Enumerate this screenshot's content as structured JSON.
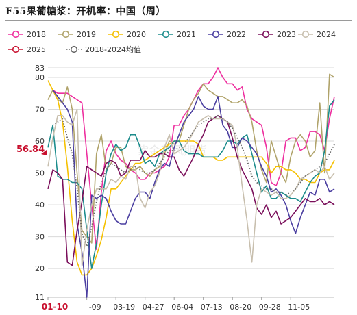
{
  "title": "F55果葡糖浆：开机率：中国（周）",
  "chart_data": {
    "type": "line",
    "ylim": [
      11,
      83
    ],
    "y_ticks": [
      "11",
      "20",
      "30",
      "40",
      "50",
      "60",
      "70",
      "80",
      "83"
    ],
    "x_tick_labels": [
      "01-10",
      "-09",
      "03-19",
      "04-27",
      "06-04",
      "07-13",
      "08-20",
      "09-28",
      "11-05"
    ],
    "current_value_label": "56.84",
    "legend_position": "top",
    "grid": "horizontal",
    "series": [
      {
        "name": "2018",
        "color": "#ee2f9f",
        "dash": "solid",
        "marker": "circle",
        "values": [
          null,
          76,
          75,
          75,
          75,
          74,
          73,
          72,
          56,
          40,
          26,
          44,
          57,
          60,
          56,
          54,
          53,
          51,
          50,
          48,
          48,
          50,
          50,
          51,
          52,
          55,
          65,
          65,
          68,
          70,
          73,
          76,
          78,
          78,
          80,
          83,
          80,
          78,
          78,
          76,
          77,
          70,
          67,
          66,
          65,
          58,
          47,
          46,
          50,
          60,
          61,
          61,
          57,
          58,
          63,
          63,
          62,
          57,
          67,
          74
        ]
      },
      {
        "name": "2019",
        "color": "#b0a36a",
        "dash": "solid",
        "marker": "circle",
        "values": [
          73,
          76,
          73,
          72,
          77,
          70,
          50,
          32,
          30,
          28,
          56,
          62,
          51,
          53,
          58,
          58,
          52,
          51,
          51,
          52,
          50,
          49,
          51,
          52,
          56,
          60,
          59,
          60,
          65,
          70,
          73,
          75,
          78,
          76,
          75,
          74,
          74,
          73,
          72,
          72,
          73,
          71,
          66,
          57,
          51,
          47,
          60,
          55,
          50,
          47,
          55,
          60,
          62,
          60,
          55,
          57,
          72,
          50,
          81,
          80
        ]
      },
      {
        "name": "2020",
        "color": "#f5c000",
        "dash": "solid",
        "marker": "circle",
        "values": [
          79,
          76,
          73,
          66,
          52,
          35,
          22,
          18,
          18,
          20,
          24,
          29,
          36,
          45,
          45,
          47,
          49,
          51,
          53,
          53,
          54,
          55,
          56,
          57,
          58,
          59,
          60,
          60,
          60,
          60,
          60,
          59,
          55,
          55,
          55,
          54,
          54,
          55,
          55,
          55,
          55,
          55,
          55,
          55,
          55,
          53,
          50,
          52,
          52,
          51,
          51,
          50,
          48,
          48,
          47,
          47,
          50,
          51,
          51,
          54
        ]
      },
      {
        "name": "2021",
        "color": "#1c8c8c",
        "dash": "solid",
        "marker": "circle",
        "values": [
          58,
          65,
          49,
          48,
          48,
          47,
          47,
          45,
          32,
          20,
          28,
          40,
          50,
          56,
          59,
          57,
          58,
          62,
          62,
          58,
          53,
          54,
          52,
          56,
          57,
          58,
          60,
          60,
          57,
          56,
          56,
          56,
          55,
          55,
          55,
          55,
          57,
          60,
          60,
          59,
          61,
          62,
          56,
          50,
          44,
          46,
          42,
          42,
          44,
          43,
          42,
          42,
          41,
          44,
          47,
          49,
          50,
          57,
          71,
          73
        ]
      },
      {
        "name": "2022",
        "color": "#4a3ea0",
        "dash": "solid",
        "marker": "circle",
        "values": [
          null,
          76,
          74,
          72,
          70,
          66,
          34,
          25,
          11,
          43,
          42,
          43,
          42,
          38,
          35,
          34,
          34,
          38,
          42,
          44,
          44,
          42,
          47,
          51,
          53,
          52,
          58,
          62,
          66,
          68,
          70,
          74,
          71,
          70,
          70,
          74,
          65,
          63,
          58,
          58,
          61,
          60,
          58,
          56,
          52,
          49,
          44,
          45,
          43,
          40,
          35,
          31,
          36,
          40,
          44,
          43,
          48,
          48,
          44,
          45
        ]
      },
      {
        "name": "2023",
        "color": "#7a0e5a",
        "dash": "solid",
        "marker": "circle",
        "values": [
          45,
          51,
          50,
          48,
          22,
          21,
          32,
          41,
          52,
          51,
          50,
          49,
          53,
          54,
          53,
          49,
          50,
          54,
          54,
          54,
          57,
          55,
          55,
          56,
          56,
          55,
          55,
          51,
          49,
          52,
          55,
          59,
          62,
          66,
          67,
          68,
          67,
          66,
          61,
          55,
          51,
          48,
          45,
          39,
          37,
          40,
          36,
          38,
          34,
          35,
          36,
          38,
          40,
          42,
          41,
          41,
          42,
          40,
          41,
          40
        ]
      },
      {
        "name": "2024",
        "color": "#c8bfae",
        "dash": "solid",
        "marker": "circle",
        "values": [
          52,
          61,
          68,
          68,
          66,
          65,
          70,
          21,
          32,
          40,
          45,
          45,
          45,
          48,
          47,
          49,
          48,
          52,
          52,
          42,
          39,
          44,
          46,
          50,
          58,
          62,
          56,
          57,
          58,
          60,
          63,
          66,
          67,
          68,
          67,
          67,
          67,
          66,
          65,
          58,
          46,
          35,
          22,
          40,
          45,
          44,
          43,
          44,
          42,
          42,
          43,
          45,
          48,
          49,
          50,
          51,
          50,
          52,
          48,
          50
        ]
      },
      {
        "name": "2025",
        "color": "#c8102e",
        "dash": "solid",
        "marker": "circle",
        "values": [
          null,
          null,
          null,
          null,
          null,
          null,
          null,
          null,
          null,
          null,
          null,
          null,
          null,
          null,
          null,
          null,
          null,
          null,
          null,
          null,
          null,
          null,
          null,
          null,
          null,
          null,
          null,
          null,
          null,
          null,
          null,
          null,
          null,
          null,
          null,
          null,
          null,
          null,
          null,
          null,
          null,
          null,
          null,
          null,
          null,
          null,
          null,
          null,
          null,
          null,
          null,
          null,
          null,
          null,
          null,
          null,
          null,
          null,
          null,
          null
        ]
      },
      {
        "name": "2018-2024均值",
        "color": "#666666",
        "dash": "dotted",
        "marker": "circle",
        "values": [
          null,
          65,
          66,
          67,
          61,
          56,
          45,
          31,
          27,
          33,
          41,
          47,
          51,
          53,
          52,
          51,
          50,
          51,
          52,
          51,
          50,
          50,
          51,
          53,
          55,
          57,
          57,
          58,
          59,
          61,
          63,
          65,
          66,
          67,
          67,
          68,
          67,
          66,
          64,
          61,
          58,
          54,
          49,
          47,
          46,
          45,
          45,
          44,
          44,
          43,
          44,
          45,
          47,
          49,
          50,
          51,
          52,
          53,
          56,
          59
        ]
      }
    ]
  }
}
